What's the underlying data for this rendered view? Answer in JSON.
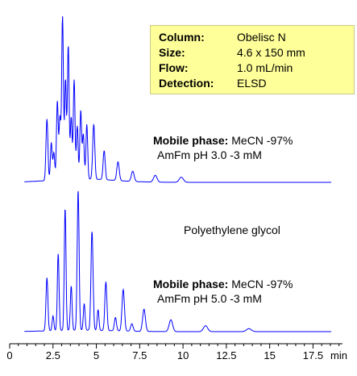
{
  "info_box": {
    "rows": [
      {
        "key": "Column:",
        "value": "Obelisc N"
      },
      {
        "key": "Size:",
        "value": "4.6 x 150 mm"
      },
      {
        "key": "Flow:",
        "value": "1.0 mL/min"
      },
      {
        "key": "Detection:",
        "value": "ELSD"
      }
    ],
    "background": "#ffff99"
  },
  "sample_label": "Polyethylene glycol",
  "trace1_label": {
    "bold": "Mobile phase:",
    "rest": "MeCN -97%",
    "line2": "AmFm pH 3.0 -3 mM"
  },
  "trace2_label": {
    "bold": "Mobile phase:",
    "rest": "MeCN -97%",
    "line2": "AmFm pH 5.0 -3 mM"
  },
  "x_unit": "min",
  "chart_data": {
    "type": "line",
    "xlim": [
      0,
      19.2
    ],
    "x_ticks": [
      0,
      2.5,
      5,
      7.5,
      10,
      12.5,
      15,
      17.5
    ],
    "x_tick_labels": [
      "0",
      "2.5",
      "5",
      "7.5",
      "10",
      "12.5",
      "15",
      "17.5"
    ],
    "line_color": "#0000ff",
    "series": [
      {
        "baseline": 0.02,
        "peaks": [
          {
            "t": 2.15,
            "h": 0.36,
            "w": 0.055
          },
          {
            "t": 2.4,
            "h": 0.22,
            "w": 0.05
          },
          {
            "t": 2.55,
            "h": 0.16,
            "w": 0.05
          },
          {
            "t": 2.75,
            "h": 0.46,
            "w": 0.05
          },
          {
            "t": 2.9,
            "h": 0.36,
            "w": 0.05
          },
          {
            "t": 3.05,
            "h": 0.95,
            "w": 0.05
          },
          {
            "t": 3.22,
            "h": 0.58,
            "w": 0.05
          },
          {
            "t": 3.38,
            "h": 0.78,
            "w": 0.05
          },
          {
            "t": 3.55,
            "h": 0.36,
            "w": 0.05
          },
          {
            "t": 3.72,
            "h": 0.58,
            "w": 0.05
          },
          {
            "t": 3.9,
            "h": 0.31,
            "w": 0.05
          },
          {
            "t": 4.1,
            "h": 0.4,
            "w": 0.05
          },
          {
            "t": 4.25,
            "h": 0.26,
            "w": 0.05
          },
          {
            "t": 4.45,
            "h": 0.32,
            "w": 0.05
          },
          {
            "t": 4.85,
            "h": 0.32,
            "w": 0.06
          },
          {
            "t": 5.45,
            "h": 0.17,
            "w": 0.06
          },
          {
            "t": 6.25,
            "h": 0.11,
            "w": 0.07
          },
          {
            "t": 7.1,
            "h": 0.06,
            "w": 0.08
          },
          {
            "t": 8.4,
            "h": 0.04,
            "w": 0.1
          },
          {
            "t": 9.9,
            "h": 0.03,
            "w": 0.12
          }
        ]
      },
      {
        "baseline": 0.01,
        "peaks": [
          {
            "t": 2.15,
            "h": 0.36,
            "w": 0.055
          },
          {
            "t": 2.5,
            "h": 0.1,
            "w": 0.05
          },
          {
            "t": 2.8,
            "h": 0.52,
            "w": 0.05
          },
          {
            "t": 3.2,
            "h": 0.83,
            "w": 0.05
          },
          {
            "t": 3.55,
            "h": 0.3,
            "w": 0.05
          },
          {
            "t": 3.95,
            "h": 0.95,
            "w": 0.055
          },
          {
            "t": 4.3,
            "h": 0.18,
            "w": 0.05
          },
          {
            "t": 4.75,
            "h": 0.67,
            "w": 0.06
          },
          {
            "t": 5.1,
            "h": 0.14,
            "w": 0.05
          },
          {
            "t": 5.55,
            "h": 0.33,
            "w": 0.06
          },
          {
            "t": 6.1,
            "h": 0.09,
            "w": 0.06
          },
          {
            "t": 6.55,
            "h": 0.28,
            "w": 0.07
          },
          {
            "t": 7.05,
            "h": 0.05,
            "w": 0.07
          },
          {
            "t": 7.75,
            "h": 0.15,
            "w": 0.08
          },
          {
            "t": 9.3,
            "h": 0.08,
            "w": 0.1
          },
          {
            "t": 11.3,
            "h": 0.04,
            "w": 0.12
          },
          {
            "t": 13.8,
            "h": 0.02,
            "w": 0.14
          }
        ]
      }
    ]
  }
}
